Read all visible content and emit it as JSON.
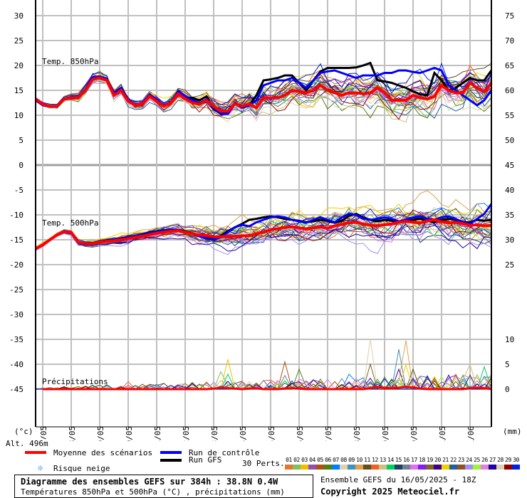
{
  "chart_data": {
    "type": "line",
    "title": "Diagramme des ensembles GEFS sur 384h : 38.8N 0.4W",
    "subtitle": "Températures 850hPa et 500hPa (°C) , précipitations (mm)",
    "run_info": "Ensemble GEFS du 16/05/2025 - 18Z",
    "copyright": "Copyright 2025 Meteociel.fr",
    "altitude": "Alt. 496m",
    "left_unit": "(°c)",
    "right_unit": "(mm)",
    "time_step_hours": 6,
    "x_tick_labels": [
      "17/05",
      "18/05",
      "19/05",
      "20/05",
      "21/05",
      "22/05",
      "23/05",
      "24/05",
      "25/05",
      "26/05",
      "27/05",
      "28/05",
      "29/05",
      "30/05",
      "31/05",
      "01/06"
    ],
    "left_ticks": [
      30,
      25,
      20,
      15,
      10,
      5,
      0,
      -5,
      -10,
      -15,
      -20,
      -25,
      -30,
      -35,
      -40,
      -45
    ],
    "right_ticks_850": [
      75,
      70,
      65,
      60,
      55,
      50
    ],
    "right_ticks_500": [
      45,
      40,
      35,
      30,
      25
    ],
    "right_ticks_precip": [
      10,
      5,
      0
    ],
    "ylim_left": [
      -52,
      33
    ],
    "grid": true,
    "panels": {
      "t850": {
        "label": "Temp. 850hPa",
        "mean": [
          13.3,
          12.2,
          11.8,
          11.8,
          13.2,
          13.5,
          13.5,
          15,
          17.2,
          17.5,
          17,
          14,
          15,
          12.8,
          12,
          12.3,
          13.8,
          12.8,
          11.8,
          12.5,
          14.3,
          13.3,
          12.5,
          12.2,
          13,
          11.8,
          10.8,
          10.8,
          12.3,
          11.8,
          12.3,
          11.5,
          13.5,
          13.5,
          13.5,
          14,
          15,
          14.8,
          14.5,
          15,
          16,
          15,
          14.5,
          14,
          14.5,
          14.5,
          14.3,
          14.5,
          15.5,
          14.5,
          13,
          13,
          13,
          14,
          13.5,
          13.3,
          13.8,
          16,
          15,
          14.5,
          14.5,
          16.5,
          15.5,
          14.7,
          16.5
        ],
        "control": [
          13,
          12,
          11.7,
          11.7,
          13.3,
          13.6,
          13.6,
          15.2,
          17.6,
          17.8,
          17.3,
          14.5,
          15.5,
          13,
          12.2,
          12.4,
          14.2,
          13,
          12,
          12.6,
          14.8,
          13.8,
          13,
          12.4,
          13.2,
          11.5,
          10.2,
          10.3,
          12.3,
          11.5,
          12,
          13,
          16,
          16.5,
          17,
          17,
          17.5,
          16.5,
          15.5,
          17,
          18.5,
          18.8,
          19,
          18.5,
          18,
          17.5,
          18,
          18,
          18,
          18.5,
          18.5,
          19,
          19,
          18.7,
          18.5,
          19,
          19.5,
          19,
          16,
          15,
          14,
          13,
          12,
          13,
          15
        ],
        "gfs": [
          13.2,
          12.1,
          11.8,
          11.8,
          13.2,
          13.5,
          13.5,
          15,
          17.4,
          17.6,
          17.2,
          14.3,
          15.3,
          12.9,
          12.1,
          12.3,
          14,
          12.9,
          11.9,
          12.5,
          14.5,
          13.6,
          13.5,
          13,
          13.8,
          11.2,
          10.3,
          10.5,
          12.5,
          11.6,
          12,
          14,
          17,
          17.2,
          17.5,
          18,
          18,
          16.5,
          15,
          17,
          18.8,
          19.5,
          19.5,
          19.5,
          19.5,
          19.6,
          20,
          20.5,
          17,
          16.8,
          16.5,
          16,
          15.5,
          14.8,
          14.2,
          14,
          18.5,
          17,
          15,
          15.5,
          16.5,
          17.5,
          17,
          17,
          19
        ],
        "spread": [
          0.3,
          0.5,
          1,
          1.2,
          1,
          1.3,
          1.6,
          2,
          2.5,
          2.7,
          2.8,
          3,
          3,
          3.2,
          3.3,
          3.5,
          3.6
        ]
      },
      "t500": {
        "label": "Temp. 500hPa",
        "mean": [
          -16.8,
          -16,
          -15,
          -14,
          -13.4,
          -13.5,
          -15.5,
          -15.8,
          -15.8,
          -15.5,
          -15.3,
          -15.2,
          -15,
          -14.8,
          -14.5,
          -14.3,
          -14,
          -13.7,
          -13.5,
          -13.3,
          -13.2,
          -13.5,
          -13.8,
          -14,
          -14.2,
          -14.4,
          -14.4,
          -14.3,
          -14.3,
          -14.2,
          -14.2,
          -13.8,
          -13.5,
          -13,
          -12.8,
          -12.5,
          -12.4,
          -12.6,
          -12.8,
          -12.6,
          -12.4,
          -12.7,
          -12.2,
          -11.9,
          -11.6,
          -11.5,
          -11.8,
          -12.1,
          -12.2,
          -12,
          -11.8,
          -11.5,
          -11.3,
          -11.5,
          -11.6,
          -11.2,
          -11,
          -11.4,
          -11.6,
          -11.5,
          -11.8,
          -12.1,
          -12,
          -12.2,
          -12.1
        ],
        "control": [
          -16.8,
          -16,
          -15,
          -14,
          -13.4,
          -13.6,
          -15.6,
          -15.9,
          -15.8,
          -15.4,
          -15.2,
          -15,
          -14.8,
          -14.5,
          -14.2,
          -14,
          -13.6,
          -13.4,
          -13.2,
          -13,
          -13,
          -13.4,
          -13.8,
          -14.3,
          -14.8,
          -15,
          -14.5,
          -13.5,
          -12.5,
          -12,
          -12.3,
          -11.5,
          -11,
          -10.5,
          -10.3,
          -10.5,
          -11,
          -11.3,
          -11.6,
          -11,
          -10.5,
          -11,
          -11.5,
          -10.5,
          -9.8,
          -10,
          -10.8,
          -11,
          -10.8,
          -10.5,
          -10.8,
          -11.3,
          -11,
          -10.5,
          -10.3,
          -10.8,
          -11,
          -10.5,
          -10.3,
          -10.8,
          -11.5,
          -11.8,
          -10.8,
          -9.8,
          -7.8
        ],
        "gfs": [
          -16.8,
          -16,
          -15,
          -14,
          -13.4,
          -13.5,
          -15.5,
          -15.8,
          -15.7,
          -15.4,
          -15.1,
          -15,
          -14.7,
          -14.4,
          -14.2,
          -13.9,
          -13.5,
          -13.3,
          -13.1,
          -13,
          -13,
          -13.3,
          -13.7,
          -14.2,
          -14.6,
          -14.8,
          -14.2,
          -13.3,
          -12.5,
          -11.8,
          -11,
          -10.8,
          -10.5,
          -10.3,
          -10.5,
          -10.8,
          -11,
          -11.2,
          -11.5,
          -11.3,
          -11,
          -11.2,
          -11.6,
          -11.2,
          -10.2,
          -9.8,
          -10.5,
          -11,
          -11.3,
          -11,
          -11.2,
          -11.5,
          -11.3,
          -11,
          -10.8,
          -11.2,
          -11.5,
          -11,
          -10.8,
          -11,
          -11.5,
          -11.5,
          -11,
          -11.2,
          -11
        ],
        "spread": [
          0.3,
          0.4,
          0.6,
          0.8,
          0.9,
          1.2,
          1.8,
          2.2,
          2.3,
          2.5,
          2.7,
          2.8,
          3,
          3,
          3.2,
          3.3,
          3.5
        ]
      },
      "precip": {
        "label": "Précipitations",
        "mean": [
          0,
          0,
          0,
          0,
          0,
          0,
          0,
          0,
          0,
          0,
          0,
          0,
          0,
          0,
          0,
          0,
          0,
          0,
          0,
          0,
          0,
          0,
          0,
          0,
          0,
          0.1,
          0.3,
          0.2,
          0.1,
          0,
          0.1,
          0.2,
          0,
          0,
          0,
          0.1,
          0.2,
          0.1,
          0,
          0,
          0,
          0,
          0,
          0,
          0,
          0,
          0,
          0.2,
          0.4,
          0.3,
          0.2,
          0.3,
          0.5,
          0.3,
          0.1,
          0,
          0,
          0,
          0,
          0,
          0,
          0.2,
          0.3,
          0.2,
          0
        ],
        "peaks": [
          [
            13,
            1.5
          ],
          [
            26,
            3.5
          ],
          [
            27,
            6
          ],
          [
            33,
            1.5
          ],
          [
            35,
            5.5
          ],
          [
            37,
            4
          ],
          [
            44,
            3
          ],
          [
            47,
            10
          ],
          [
            51,
            8
          ],
          [
            52,
            9.8
          ],
          [
            53,
            4
          ],
          [
            59,
            3
          ],
          [
            61,
            5
          ],
          [
            63,
            4.5
          ]
        ]
      }
    },
    "legend": {
      "mean": "Moyenne des scénarios",
      "control": "Run de contrôle",
      "gfs": "Run GFS",
      "snow": "Risque neige",
      "perts_label": "30 Perts.",
      "perts": [
        "01",
        "02",
        "03",
        "04",
        "05",
        "06",
        "07",
        "08",
        "09",
        "10",
        "11",
        "12",
        "13",
        "14",
        "15",
        "16",
        "17",
        "18",
        "19",
        "20",
        "21",
        "22",
        "23",
        "24",
        "25",
        "26",
        "27",
        "28",
        "29",
        "30"
      ]
    },
    "colors": {
      "mean": "#ff0000",
      "control": "#0000ff",
      "gfs": "#000000",
      "grid": "#c0c0c0",
      "perts": [
        "#e07830",
        "#80c060",
        "#f0c000",
        "#9050b0",
        "#b05010",
        "#508010",
        "#0080ff",
        "#e0d0b0",
        "#4090c0",
        "#e0a050",
        "#605020",
        "#f06020",
        "#d0c080",
        "#00d060",
        "#204060",
        "#708090",
        "#e070f0",
        "#8020f0",
        "#806030",
        "#400080",
        "#f0d000",
        "#2060a0",
        "#905020",
        "#a090f0",
        "#a0f040",
        "#e080e0",
        "#2000a0",
        "#e0d0b0",
        "#900000",
        "#0020e0"
      ]
    }
  }
}
